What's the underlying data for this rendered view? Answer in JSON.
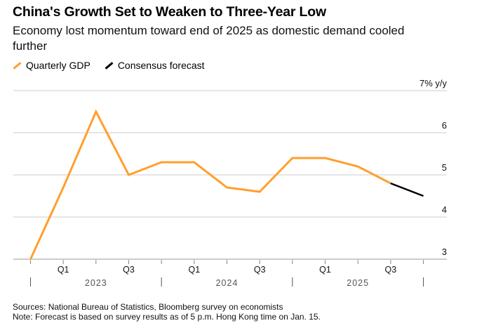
{
  "title": "China's Growth Set to Weaken to Three-Year Low",
  "subtitle": "Economy lost momentum toward end of 2025 as domestic demand cooled further",
  "sources": "Sources: National Bureau of Statistics, Bloomberg survey on economists",
  "note": "Note: Forecast is based on survey results as of 5 p.m. Hong Kong time on Jan. 15.",
  "chart_data": {
    "type": "line",
    "title": "China's Growth Set to Weaken to Three-Year Low",
    "ylabel": "% y/y",
    "ylim": [
      3,
      7
    ],
    "yticks": [
      3,
      4,
      5,
      6,
      7
    ],
    "ytick_labels": [
      "3",
      "4",
      "5",
      "6",
      "7% y/y"
    ],
    "x": [
      "2022 Q4",
      "2023 Q1",
      "2023 Q2",
      "2023 Q3",
      "2023 Q4",
      "2024 Q1",
      "2024 Q2",
      "2024 Q3",
      "2024 Q4",
      "2025 Q1",
      "2025 Q2",
      "2025 Q3",
      "2025 Q4"
    ],
    "quarter_labels": [
      {
        "i": 1,
        "label": "Q1"
      },
      {
        "i": 3,
        "label": "Q3"
      },
      {
        "i": 5,
        "label": "Q1"
      },
      {
        "i": 7,
        "label": "Q3"
      },
      {
        "i": 9,
        "label": "Q1"
      },
      {
        "i": 11,
        "label": "Q3"
      }
    ],
    "year_labels": [
      "2023",
      "2024",
      "2025"
    ],
    "grid": true,
    "legend_position": "top-left",
    "series": [
      {
        "name": "Quarterly GDP",
        "color": "#FF9F2E",
        "values": [
          3.0,
          4.7,
          6.5,
          5.0,
          5.3,
          5.3,
          4.7,
          4.6,
          5.4,
          5.4,
          5.2,
          4.8,
          null
        ]
      },
      {
        "name": "Consensus forecast",
        "color": "#000000",
        "values": [
          null,
          null,
          null,
          null,
          null,
          null,
          null,
          null,
          null,
          null,
          null,
          4.8,
          4.5
        ]
      }
    ]
  }
}
